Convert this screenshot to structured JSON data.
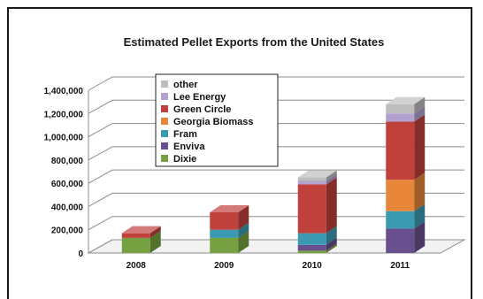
{
  "chart_data": {
    "type": "bar",
    "stacked": true,
    "style": "3d",
    "title": "Estimated Pellet Exports from the United States",
    "xlabel": "",
    "ylabel": "",
    "ylim": [
      0,
      1400000
    ],
    "yticks": [
      "0",
      "200,000",
      "400,000",
      "600,000",
      "800,000",
      "1,000,000",
      "1,200,000",
      "1,400,000"
    ],
    "categories": [
      "2008",
      "2009",
      "2010",
      "2011"
    ],
    "grid": true,
    "legend_position": "inside-top-left",
    "series": [
      {
        "name": "Dixie",
        "color": "#77a040",
        "values": [
          130000,
          130000,
          20000,
          0
        ]
      },
      {
        "name": "Enviva",
        "color": "#6a4f8e",
        "values": [
          0,
          0,
          50000,
          210000
        ]
      },
      {
        "name": "Fram",
        "color": "#3b9ab2",
        "values": [
          0,
          70000,
          100000,
          150000
        ]
      },
      {
        "name": "Georgia Biomass",
        "color": "#e8863a",
        "values": [
          0,
          0,
          0,
          270000
        ]
      },
      {
        "name": "Green Circle",
        "color": "#c0403c",
        "values": [
          40000,
          150000,
          420000,
          500000
        ]
      },
      {
        "name": "Lee Energy",
        "color": "#b3a2cf",
        "values": [
          0,
          0,
          30000,
          70000
        ]
      },
      {
        "name": "other",
        "color": "#bdbdbd",
        "values": [
          0,
          0,
          30000,
          80000
        ]
      }
    ]
  }
}
